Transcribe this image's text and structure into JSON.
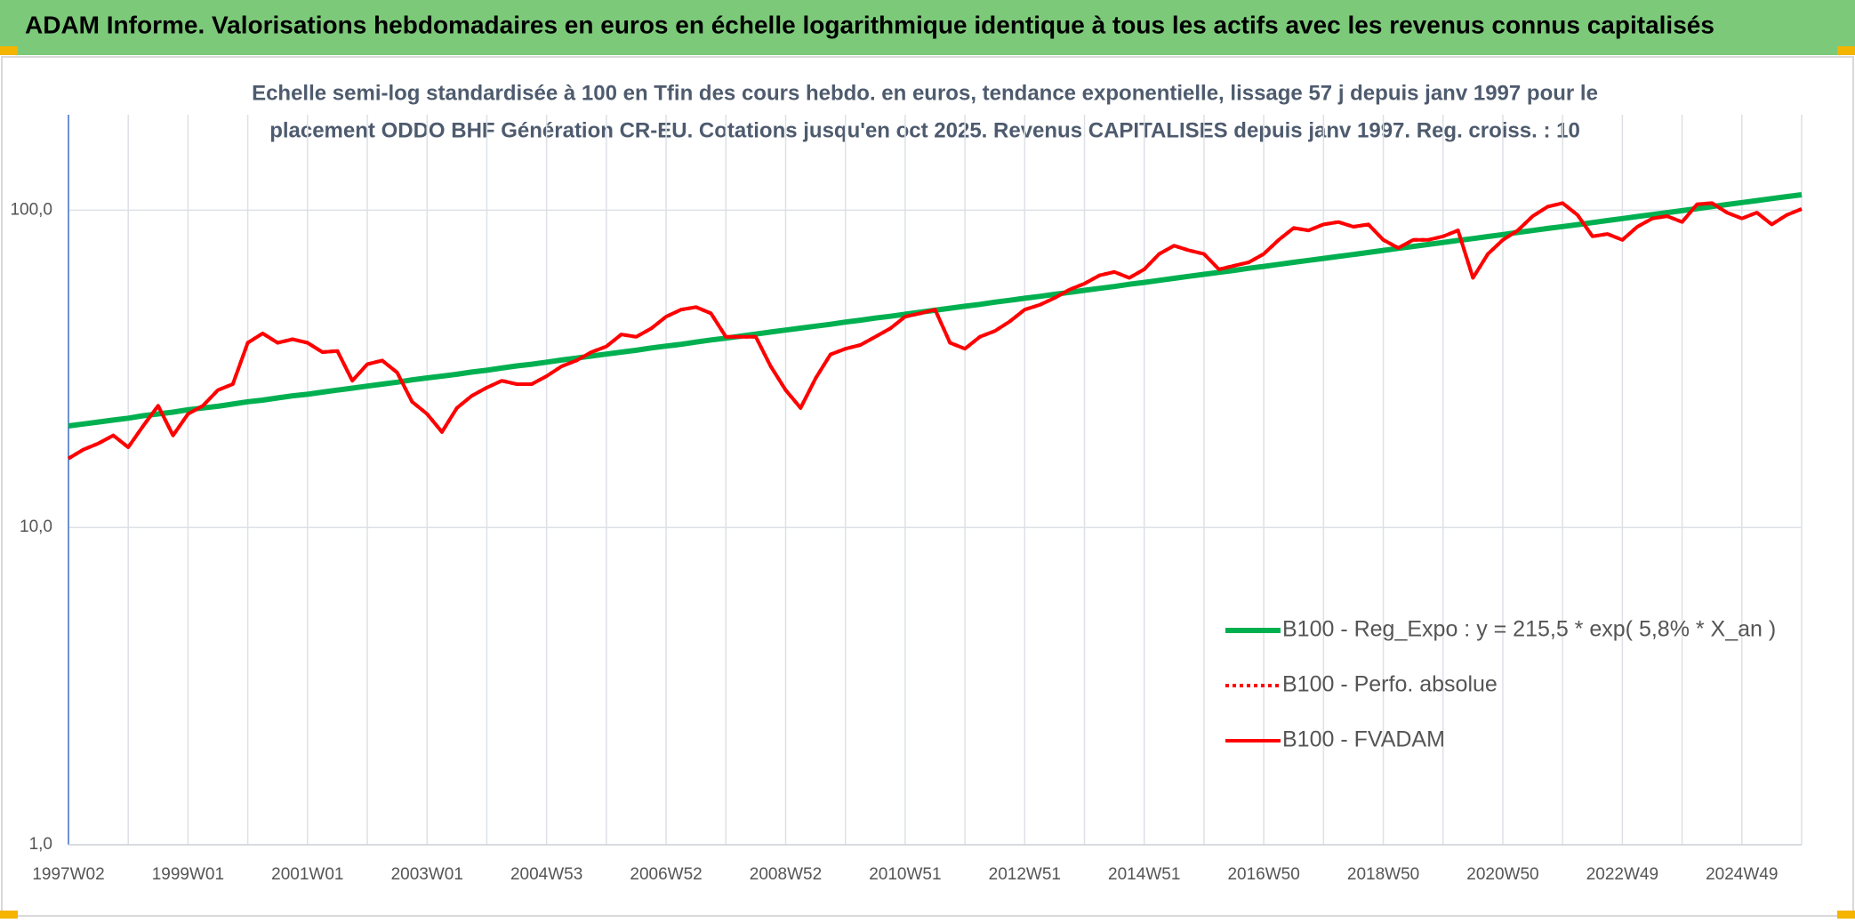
{
  "header": {
    "title": "ADAM Informe. Valorisations hebdomadaires en euros en échelle logarithmique identique à tous les actifs avec les revenus connus capitalisés"
  },
  "chart_data": {
    "type": "line",
    "title": "Echelle semi-log standardisée à 100 en Tfin des cours hebdo. en euros, tendance exponentielle, lissage 57 j depuis janv 1997 pour le",
    "subtitle": "placement ODDO BHF Génération CR-EU. Cotations jusqu'en oct 2025. Revenus CAPITALISES depuis janv 1997. Reg. croiss. : 10",
    "log_y": true,
    "grid": true,
    "legend_position": "lower right",
    "ylim": [
      1,
      200
    ],
    "yticks": [
      {
        "value": 1,
        "label": "1,0"
      },
      {
        "value": 10,
        "label": "10,0"
      },
      {
        "value": 100,
        "label": "100,0"
      }
    ],
    "categories": [
      "1997W02",
      null,
      null,
      null,
      null,
      null,
      null,
      null,
      "1999W01",
      null,
      null,
      null,
      null,
      null,
      null,
      null,
      "2001W01",
      null,
      null,
      null,
      null,
      null,
      null,
      null,
      "2003W01",
      null,
      null,
      null,
      null,
      null,
      null,
      null,
      "2004W53",
      null,
      null,
      null,
      null,
      null,
      null,
      null,
      "2006W52",
      null,
      null,
      null,
      null,
      null,
      null,
      null,
      "2008W52",
      null,
      null,
      null,
      null,
      null,
      null,
      null,
      "2010W51",
      null,
      null,
      null,
      null,
      null,
      null,
      null,
      "2012W51",
      null,
      null,
      null,
      null,
      null,
      null,
      null,
      "2014W51",
      null,
      null,
      null,
      null,
      null,
      null,
      null,
      "2016W50",
      null,
      null,
      null,
      null,
      null,
      null,
      null,
      "2018W50",
      null,
      null,
      null,
      null,
      null,
      null,
      null,
      "2020W50",
      null,
      null,
      null,
      null,
      null,
      null,
      null,
      "2022W49",
      null,
      null,
      null,
      null,
      null,
      null,
      null,
      "2024W49",
      null,
      null,
      null,
      null
    ],
    "series": [
      {
        "name": "B100 - Reg_Expo : y = 215,5 * exp( 5,8% *  X_an )",
        "color": "#00b050",
        "line_style": "solid",
        "line_width": 6,
        "values": [
          20.9,
          21.2,
          21.5,
          21.8,
          22.1,
          22.5,
          22.8,
          23.1,
          23.5,
          23.8,
          24.1,
          24.5,
          24.9,
          25.2,
          25.6,
          26.0,
          26.3,
          26.7,
          27.1,
          27.5,
          27.9,
          28.3,
          28.7,
          29.2,
          29.6,
          30.0,
          30.4,
          30.9,
          31.3,
          31.8,
          32.3,
          32.7,
          33.2,
          33.7,
          34.2,
          34.7,
          35.2,
          35.7,
          36.2,
          36.8,
          37.3,
          37.8,
          38.4,
          39.0,
          39.5,
          40.1,
          40.7,
          41.3,
          41.9,
          42.5,
          43.1,
          43.7,
          44.4,
          45.0,
          45.7,
          46.3,
          47.0,
          47.7,
          48.4,
          49.1,
          49.8,
          50.5,
          51.3,
          52.0,
          52.8,
          53.5,
          54.3,
          55.1,
          55.9,
          56.7,
          57.5,
          58.4,
          59.2,
          60.1,
          61.0,
          61.9,
          62.8,
          63.7,
          64.6,
          65.6,
          66.5,
          67.5,
          68.5,
          69.5,
          70.5,
          71.5,
          72.5,
          73.6,
          74.7,
          75.8,
          76.9,
          78.0,
          79.1,
          80.3,
          81.4,
          82.6,
          83.8,
          85.1,
          86.3,
          87.6,
          88.8,
          90.1,
          91.4,
          92.8,
          94.1,
          95.5,
          96.9,
          98.3,
          99.7,
          101.2,
          102.7,
          104.2,
          105.7,
          107.2,
          108.8,
          110.4,
          111.9
        ]
      },
      {
        "name": "B100 - Perfo. absolue",
        "color": "#ff0000",
        "line_style": "dotted",
        "line_width": 4,
        "values": [
          16.5,
          17.6,
          18.4,
          19.5,
          17.9,
          20.9,
          24.2,
          19.5,
          22.8,
          24.2,
          27.1,
          28.3,
          38.2,
          40.9,
          38.2,
          39.2,
          38.2,
          35.7,
          36.0,
          29.0,
          32.7,
          33.6,
          30.8,
          24.9,
          22.8,
          20.0,
          23.8,
          26.0,
          27.6,
          29.0,
          28.3,
          28.3,
          30.0,
          32.2,
          33.6,
          35.7,
          37.2,
          40.6,
          39.9,
          42.4,
          46.2,
          48.6,
          49.5,
          47.3,
          39.9,
          39.9,
          39.9,
          32.2,
          27.1,
          23.8,
          29.5,
          35.1,
          36.6,
          37.6,
          39.9,
          42.4,
          46.2,
          47.3,
          48.6,
          38.2,
          36.6,
          39.9,
          41.6,
          44.6,
          48.6,
          50.3,
          52.9,
          56.2,
          58.7,
          62.3,
          63.9,
          61.2,
          65.1,
          72.8,
          77.3,
          74.7,
          72.8,
          65.1,
          66.8,
          68.5,
          72.8,
          80.6,
          87.9,
          86.4,
          90.2,
          91.8,
          88.7,
          90.2,
          80.6,
          76.0,
          80.6,
          80.6,
          82.7,
          86.4,
          61.2,
          72.8,
          80.6,
          86.4,
          95.8,
          102.6,
          105.3,
          96.6,
          82.7,
          84.2,
          80.6,
          88.7,
          94.2,
          95.8,
          91.8,
          104.4,
          105.3,
          98.3,
          94.2,
          98.3,
          90.2,
          96.6,
          100.9
        ]
      },
      {
        "name": "B100 - FVADAM",
        "color": "#ff0000",
        "line_style": "solid",
        "line_width": 4,
        "values": [
          16.5,
          17.6,
          18.4,
          19.5,
          17.9,
          20.9,
          24.2,
          19.5,
          22.8,
          24.2,
          27.1,
          28.3,
          38.2,
          40.9,
          38.2,
          39.2,
          38.2,
          35.7,
          36.0,
          29.0,
          32.7,
          33.6,
          30.8,
          24.9,
          22.8,
          20.0,
          23.8,
          26.0,
          27.6,
          29.0,
          28.3,
          28.3,
          30.0,
          32.2,
          33.6,
          35.7,
          37.2,
          40.6,
          39.9,
          42.4,
          46.2,
          48.6,
          49.5,
          47.3,
          39.9,
          39.9,
          39.9,
          32.2,
          27.1,
          23.8,
          29.5,
          35.1,
          36.6,
          37.6,
          39.9,
          42.4,
          46.2,
          47.3,
          48.6,
          38.2,
          36.6,
          39.9,
          41.6,
          44.6,
          48.6,
          50.3,
          52.9,
          56.2,
          58.7,
          62.3,
          63.9,
          61.2,
          65.1,
          72.8,
          77.3,
          74.7,
          72.8,
          65.1,
          66.8,
          68.5,
          72.8,
          80.6,
          87.9,
          86.4,
          90.2,
          91.8,
          88.7,
          90.2,
          80.6,
          76.0,
          80.6,
          80.6,
          82.7,
          86.4,
          61.2,
          72.8,
          80.6,
          86.4,
          95.8,
          102.6,
          105.3,
          96.6,
          82.7,
          84.2,
          80.6,
          88.7,
          94.2,
          95.8,
          91.8,
          104.4,
          105.3,
          98.3,
          94.2,
          98.3,
          90.2,
          96.6,
          100.9
        ]
      }
    ]
  }
}
